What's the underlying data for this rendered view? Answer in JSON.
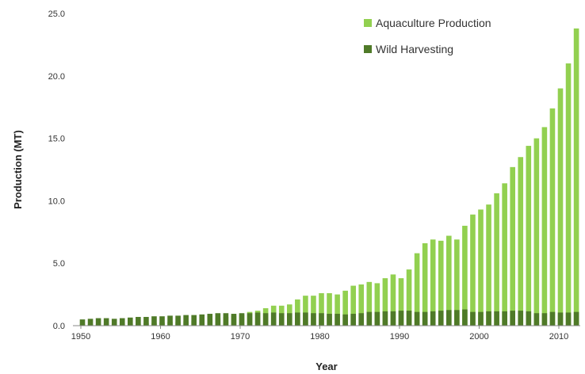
{
  "chart_data": {
    "type": "bar",
    "title": "",
    "xlabel": "Year",
    "ylabel": "Production (MT)",
    "ylim": [
      0,
      25
    ],
    "y_ticks": [
      "0.0",
      "5.0",
      "10.0",
      "15.0",
      "20.0",
      "25.0"
    ],
    "x_ticks": [
      "1950",
      "1960",
      "1970",
      "1980",
      "1990",
      "2000",
      "2010"
    ],
    "legend_position": "top-right",
    "grid": false,
    "bars_overlap": true,
    "x": [
      1950,
      1951,
      1952,
      1953,
      1954,
      1955,
      1956,
      1957,
      1958,
      1959,
      1960,
      1961,
      1962,
      1963,
      1964,
      1965,
      1966,
      1967,
      1968,
      1969,
      1970,
      1971,
      1972,
      1973,
      1974,
      1975,
      1976,
      1977,
      1978,
      1979,
      1980,
      1981,
      1982,
      1983,
      1984,
      1985,
      1986,
      1987,
      1988,
      1989,
      1990,
      1991,
      1992,
      1993,
      1994,
      1995,
      1996,
      1997,
      1998,
      1999,
      2000,
      2001,
      2002,
      2003,
      2004,
      2005,
      2006,
      2007,
      2008,
      2009,
      2010,
      2011,
      2012
    ],
    "series": [
      {
        "name": "Aquaculture Production",
        "color": "#92d050",
        "values": [
          0.1,
          0.1,
          0.1,
          0.1,
          0.1,
          0.15,
          0.15,
          0.15,
          0.2,
          0.2,
          0.25,
          0.3,
          0.3,
          0.35,
          0.4,
          0.45,
          0.5,
          0.6,
          0.7,
          0.8,
          0.9,
          1.1,
          1.2,
          1.4,
          1.6,
          1.6,
          1.7,
          2.1,
          2.4,
          2.4,
          2.6,
          2.6,
          2.5,
          2.8,
          3.2,
          3.3,
          3.5,
          3.4,
          3.8,
          4.1,
          3.8,
          4.5,
          5.8,
          6.6,
          6.9,
          6.8,
          7.2,
          6.9,
          8.0,
          8.9,
          9.3,
          9.7,
          10.6,
          11.4,
          12.7,
          13.5,
          14.4,
          15.0,
          15.9,
          17.4,
          19.0,
          21.0,
          23.8
        ]
      },
      {
        "name": "Wild Harvesting",
        "color": "#4f7a28",
        "values": [
          0.5,
          0.55,
          0.6,
          0.6,
          0.55,
          0.6,
          0.65,
          0.7,
          0.7,
          0.75,
          0.75,
          0.8,
          0.8,
          0.85,
          0.85,
          0.9,
          0.95,
          1.0,
          1.0,
          0.95,
          1.0,
          1.0,
          1.05,
          1.0,
          1.05,
          1.0,
          1.0,
          1.05,
          1.05,
          1.0,
          1.0,
          0.95,
          0.95,
          0.9,
          0.95,
          1.0,
          1.1,
          1.1,
          1.15,
          1.15,
          1.2,
          1.2,
          1.1,
          1.1,
          1.15,
          1.2,
          1.25,
          1.25,
          1.3,
          1.1,
          1.1,
          1.15,
          1.15,
          1.15,
          1.2,
          1.2,
          1.15,
          1.0,
          1.0,
          1.1,
          1.05,
          1.05,
          1.1
        ]
      }
    ]
  }
}
